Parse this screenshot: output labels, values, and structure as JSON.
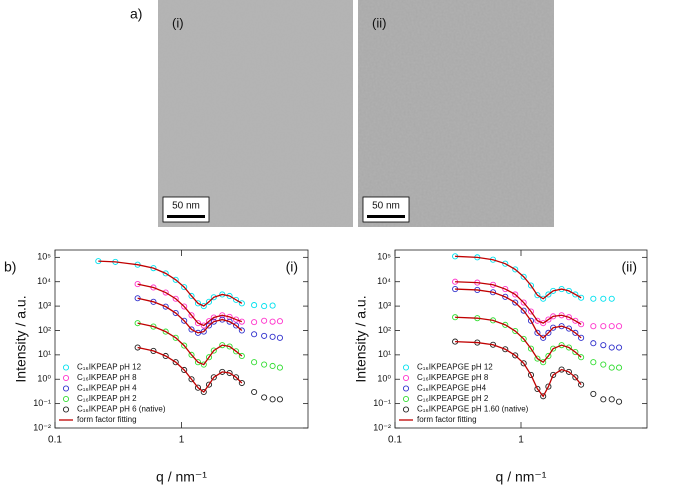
{
  "figure": {
    "panel_a_label": "a)",
    "panel_b_label": "b)",
    "images": [
      {
        "label": "(i)",
        "scale_bar": "50 nm"
      },
      {
        "label": "(ii)",
        "scale_bar": "50 nm"
      }
    ]
  },
  "chart_data": [
    {
      "type": "scatter",
      "panel_label": "(i)",
      "xlabel": "q / nm⁻¹",
      "ylabel": "Intensity / a.u.",
      "xscale": "log",
      "yscale": "log",
      "grid": false,
      "legend": "lower left",
      "xlim": [
        0.1,
        10
      ],
      "xticks": [
        0.1,
        1
      ],
      "ylim": [
        0.01,
        200000
      ],
      "yticks": [
        {
          "value": 0.01,
          "label": "10⁻²"
        },
        {
          "value": 0.1,
          "label": "10⁻¹"
        },
        {
          "value": 1,
          "label": "10⁰"
        },
        {
          "value": 10,
          "label": "10¹"
        },
        {
          "value": 100,
          "label": "10²"
        },
        {
          "value": 1000,
          "label": "10³"
        },
        {
          "value": 10000,
          "label": "10⁴"
        },
        {
          "value": 100000,
          "label": "10⁵"
        }
      ],
      "x": [
        0.22,
        0.3,
        0.45,
        0.6,
        0.75,
        0.9,
        1.05,
        1.2,
        1.35,
        1.5,
        1.65,
        1.8,
        2.1,
        2.4,
        2.7,
        3,
        3.75,
        4.5,
        5.25,
        6
      ],
      "series": [
        {
          "name": "C₁₆IKPEAP pH 12",
          "color": "#00e0ee",
          "values": [
            70000,
            65000,
            50000,
            36000,
            22000,
            12000,
            6000,
            2600,
            1300,
            1000,
            1500,
            2300,
            3000,
            2600,
            1800,
            1300,
            1100,
            1000,
            1050,
            null
          ]
        },
        {
          "name": "C₁₆IKPEAP pH 8",
          "color": "#ff33cc",
          "values": [
            null,
            null,
            8000,
            5800,
            3600,
            2000,
            960,
            420,
            200,
            160,
            240,
            340,
            420,
            360,
            280,
            230,
            220,
            250,
            230,
            240
          ]
        },
        {
          "name": "C₁₆IKPEAP pH 4",
          "color": "#3030cc",
          "values": [
            null,
            null,
            2100,
            1500,
            950,
            520,
            250,
            110,
            80,
            90,
            160,
            230,
            280,
            230,
            160,
            100,
            70,
            60,
            55,
            50
          ]
        },
        {
          "name": "C₁₆IKPEAP pH 2",
          "color": "#33dd33",
          "values": [
            null,
            null,
            200,
            145,
            90,
            50,
            24,
            10,
            5,
            4,
            8,
            15,
            25,
            22,
            14,
            9,
            5,
            4,
            3.5,
            3
          ]
        },
        {
          "name": "C₁₆IKPEAP pH 6 (native)",
          "color": "#222222",
          "values": [
            null,
            null,
            20,
            14.5,
            9,
            5,
            2.4,
            1,
            0.45,
            0.3,
            0.6,
            1.2,
            2,
            1.8,
            1.2,
            0.7,
            0.3,
            0.18,
            0.15,
            0.15
          ]
        },
        {
          "name": "form factor fitting",
          "color": "#c00000",
          "style": "line",
          "values": [
            [
              70000,
              65000,
              50000,
              36000,
              22000,
              12000,
              6000,
              2600,
              1300,
              1000,
              1500,
              2300,
              3000,
              2600,
              1800,
              1300,
              null,
              null,
              null,
              null
            ],
            [
              null,
              null,
              8000,
              5800,
              3600,
              2000,
              960,
              420,
              200,
              160,
              240,
              340,
              420,
              360,
              280,
              230,
              null,
              null,
              null,
              null
            ],
            [
              null,
              null,
              2100,
              1500,
              950,
              520,
              250,
              110,
              80,
              90,
              160,
              230,
              280,
              230,
              160,
              100,
              null,
              null,
              null,
              null
            ],
            [
              null,
              null,
              200,
              145,
              90,
              50,
              24,
              10,
              5,
              4,
              8,
              15,
              25,
              22,
              14,
              9,
              null,
              null,
              null,
              null
            ],
            [
              null,
              null,
              20,
              14.5,
              9,
              5,
              2.4,
              1,
              0.45,
              0.3,
              0.6,
              1.2,
              2,
              1.8,
              1.2,
              0.7,
              null,
              null,
              null,
              null
            ]
          ]
        }
      ]
    },
    {
      "type": "scatter",
      "panel_label": "(ii)",
      "xlabel": "q / nm⁻¹",
      "ylabel": "Intensity / a.u.",
      "xscale": "log",
      "yscale": "log",
      "grid": false,
      "legend": "lower left",
      "xlim": [
        0.1,
        10
      ],
      "xticks": [
        0.1,
        1
      ],
      "ylim": [
        0.01,
        200000
      ],
      "yticks": [
        {
          "value": 0.01,
          "label": "10⁻²"
        },
        {
          "value": 0.1,
          "label": "10⁻¹"
        },
        {
          "value": 1,
          "label": "10⁰"
        },
        {
          "value": 10,
          "label": "10¹"
        },
        {
          "value": 100,
          "label": "10²"
        },
        {
          "value": 1000,
          "label": "10³"
        },
        {
          "value": 10000,
          "label": "10⁴"
        },
        {
          "value": 100000,
          "label": "10⁵"
        }
      ],
      "x": [
        0.22,
        0.3,
        0.45,
        0.6,
        0.75,
        0.9,
        1.05,
        1.2,
        1.35,
        1.5,
        1.65,
        1.8,
        2.1,
        2.4,
        2.7,
        3,
        3.75,
        4.5,
        5.25,
        6
      ],
      "series": [
        {
          "name": "C₁₆IKPEAPGE pH 12",
          "color": "#00e0ee",
          "values": [
            null,
            110000,
            100000,
            80000,
            55000,
            32000,
            16000,
            7000,
            2800,
            2000,
            3000,
            4200,
            5000,
            4200,
            3000,
            2200,
            2000,
            2000,
            2000,
            null
          ]
        },
        {
          "name": "C₁₆IKPEAPGE pH 8",
          "color": "#ff33cc",
          "values": [
            null,
            10000,
            9200,
            7500,
            5000,
            3000,
            1400,
            600,
            250,
            200,
            280,
            380,
            420,
            350,
            250,
            180,
            150,
            150,
            150,
            150
          ]
        },
        {
          "name": "C₁₆IKPEAPGE pH4",
          "color": "#3030cc",
          "values": [
            null,
            5000,
            4600,
            3700,
            2400,
            1400,
            650,
            250,
            80,
            50,
            80,
            130,
            150,
            120,
            80,
            50,
            30,
            25,
            20,
            20
          ]
        },
        {
          "name": "C₁₆IKPEAPGE pH 2",
          "color": "#33dd33",
          "values": [
            null,
            350,
            320,
            260,
            170,
            95,
            45,
            18,
            7,
            5,
            9,
            18,
            25,
            20,
            13,
            8,
            5,
            4,
            3,
            3
          ]
        },
        {
          "name": "C₁₆IKPEAPGE pH 1.60 (native)",
          "color": "#222222",
          "values": [
            null,
            35,
            32,
            26,
            17,
            9.5,
            4.5,
            1.5,
            0.4,
            0.2,
            0.5,
            1.5,
            2.5,
            2,
            1.2,
            0.6,
            0.25,
            0.15,
            0.15,
            0.12
          ]
        },
        {
          "name": "form factor fitting",
          "color": "#c00000",
          "style": "line",
          "values": [
            [
              null,
              110000,
              100000,
              80000,
              55000,
              32000,
              16000,
              7000,
              2800,
              2000,
              3000,
              4200,
              5000,
              4200,
              3000,
              2200,
              null,
              null,
              null,
              null
            ],
            [
              null,
              10000,
              9200,
              7500,
              5000,
              3000,
              1400,
              600,
              250,
              200,
              280,
              380,
              420,
              350,
              250,
              180,
              null,
              null,
              null,
              null
            ],
            [
              null,
              5000,
              4600,
              3700,
              2400,
              1400,
              650,
              250,
              80,
              50,
              80,
              130,
              150,
              120,
              80,
              50,
              null,
              null,
              null,
              null
            ],
            [
              null,
              350,
              320,
              260,
              170,
              95,
              45,
              18,
              7,
              5,
              9,
              18,
              25,
              20,
              13,
              8,
              null,
              null,
              null,
              null
            ],
            [
              null,
              35,
              32,
              26,
              17,
              9.5,
              4.5,
              1.5,
              0.4,
              0.2,
              0.5,
              1.5,
              2.5,
              2,
              1.2,
              0.6,
              null,
              null,
              null,
              null
            ]
          ]
        }
      ]
    }
  ]
}
